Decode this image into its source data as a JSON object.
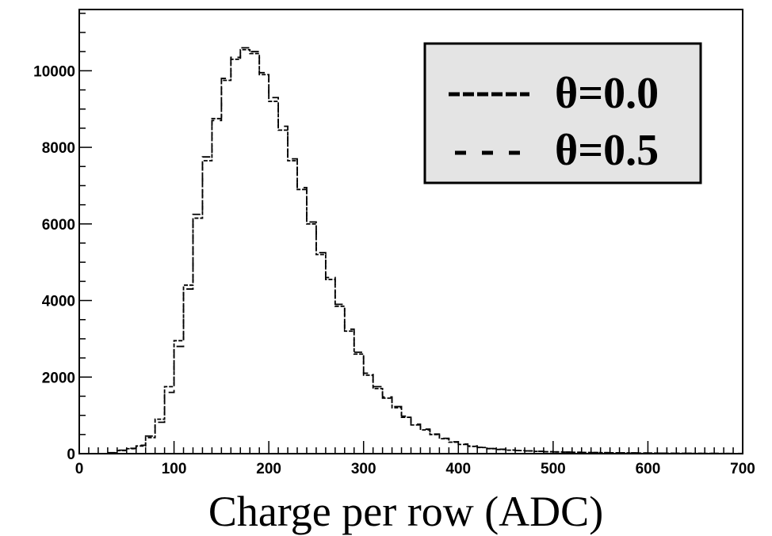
{
  "chart_data": {
    "type": "histogram",
    "xlabel": "Charge per row (ADC)",
    "ylabel": "",
    "xlim": [
      0,
      700
    ],
    "ylim": [
      0,
      11600
    ],
    "x_ticks": [
      "0",
      "100",
      "200",
      "300",
      "400",
      "500",
      "600",
      "700"
    ],
    "y_ticks": [
      "0",
      "2000",
      "4000",
      "6000",
      "8000",
      "10000"
    ],
    "grid": false,
    "legend_position": "top-right",
    "bin_width": 10,
    "bin_starts": [
      30,
      40,
      50,
      60,
      70,
      80,
      90,
      100,
      110,
      120,
      130,
      140,
      150,
      160,
      170,
      180,
      190,
      200,
      210,
      220,
      230,
      240,
      250,
      260,
      270,
      280,
      290,
      300,
      310,
      320,
      330,
      340,
      350,
      360,
      370,
      380,
      390,
      400,
      410,
      420,
      430,
      440,
      450,
      460,
      470,
      480,
      490,
      500,
      510,
      520,
      530,
      540,
      550,
      560,
      570,
      580,
      590,
      600,
      610,
      620,
      630,
      640,
      650,
      660,
      670,
      680,
      690
    ],
    "series": [
      {
        "name": "θ=0.0",
        "dash": "dense",
        "values": [
          20,
          80,
          130,
          200,
          420,
          900,
          1750,
          2950,
          4400,
          6150,
          7650,
          8750,
          9750,
          10300,
          10550,
          10450,
          9900,
          9200,
          8450,
          7650,
          6900,
          6000,
          5200,
          4550,
          3850,
          3200,
          2600,
          2050,
          1700,
          1450,
          1200,
          950,
          750,
          620,
          500,
          390,
          300,
          240,
          190,
          160,
          130,
          110,
          90,
          80,
          70,
          60,
          50,
          45,
          40,
          35,
          30,
          28,
          25,
          22,
          20,
          18,
          16,
          14,
          12,
          10,
          9,
          8,
          7,
          6,
          5,
          4,
          3
        ]
      },
      {
        "name": "θ=0.5",
        "dash": "sparse",
        "values": [
          25,
          90,
          140,
          220,
          460,
          820,
          1600,
          2800,
          4300,
          6250,
          7750,
          8700,
          9800,
          10350,
          10600,
          10500,
          9950,
          9300,
          8550,
          7700,
          6950,
          6050,
          5250,
          4600,
          3900,
          3250,
          2650,
          2100,
          1750,
          1480,
          1230,
          980,
          770,
          640,
          510,
          400,
          310,
          250,
          200,
          165,
          135,
          115,
          95,
          82,
          72,
          62,
          52,
          46,
          41,
          36,
          31,
          29,
          26,
          23,
          21,
          19,
          17,
          15,
          13,
          11,
          10,
          9,
          8,
          7,
          6,
          5,
          4
        ]
      }
    ]
  }
}
